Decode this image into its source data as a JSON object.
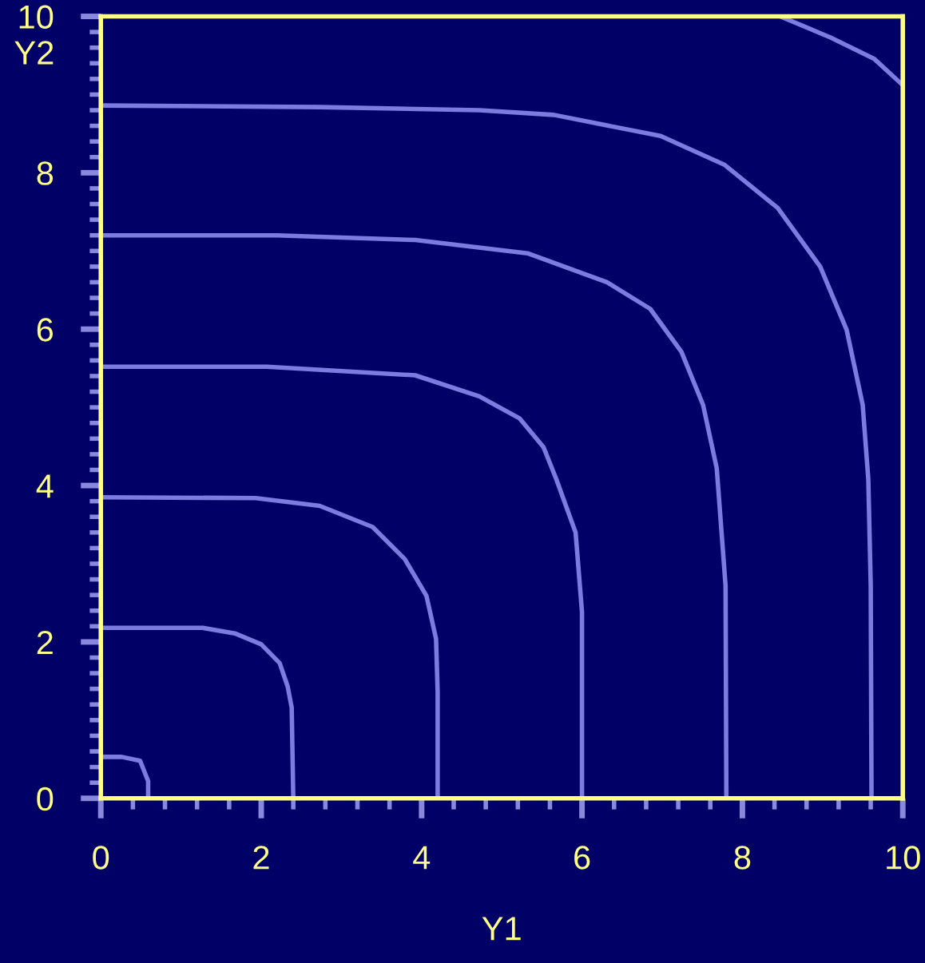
{
  "chart_data": {
    "type": "line",
    "xlabel": "Y1",
    "ylabel": "Y2",
    "xlim": [
      0,
      10
    ],
    "ylim": [
      0,
      10
    ],
    "xticks": [
      0,
      2,
      4,
      6,
      8,
      10
    ],
    "yticks": [
      0,
      2,
      4,
      6,
      8,
      10
    ],
    "grid": false,
    "marker": "none",
    "line_style": "solid",
    "series": [
      {
        "color": "#7b7be0",
        "x": [
          0,
          0.26,
          0.49,
          0.59,
          0.59
        ],
        "values": [
          0.53,
          0.53,
          0.48,
          0.22,
          0
        ]
      },
      {
        "color": "#7b7be0",
        "x": [
          0,
          1.27,
          1.67,
          2.0,
          2.23,
          2.33,
          2.38,
          2.4
        ],
        "values": [
          2.18,
          2.18,
          2.11,
          1.97,
          1.73,
          1.43,
          1.16,
          0
        ]
      },
      {
        "color": "#7b7be0",
        "x": [
          0,
          1.93,
          2.73,
          3.39,
          3.79,
          4.06,
          4.18,
          4.2,
          4.2
        ],
        "values": [
          3.85,
          3.84,
          3.74,
          3.47,
          3.06,
          2.59,
          2.04,
          1.36,
          0
        ]
      },
      {
        "color": "#7b7be0",
        "x": [
          0,
          2.07,
          3.92,
          4.72,
          5.22,
          5.52,
          5.68,
          5.92,
          6.0,
          6.0
        ],
        "values": [
          5.52,
          5.52,
          5.41,
          5.14,
          4.86,
          4.49,
          4.08,
          3.4,
          2.38,
          0
        ]
      },
      {
        "color": "#7b7be0",
        "x": [
          0,
          2.2,
          3.92,
          5.32,
          6.31,
          6.85,
          7.24,
          7.51,
          7.68,
          7.79,
          7.8
        ],
        "values": [
          7.2,
          7.2,
          7.14,
          6.97,
          6.6,
          6.26,
          5.71,
          5.03,
          4.22,
          2.72,
          0
        ]
      },
      {
        "color": "#7b7be0",
        "x": [
          0,
          2.73,
          4.72,
          5.65,
          6.98,
          7.78,
          8.44,
          8.97,
          9.3,
          9.5,
          9.57,
          9.6,
          9.61
        ],
        "values": [
          8.86,
          8.84,
          8.8,
          8.74,
          8.47,
          8.1,
          7.55,
          6.8,
          5.99,
          5.03,
          4.08,
          2.72,
          0
        ]
      },
      {
        "color": "#7b7be0",
        "x": [
          8.47,
          9.1,
          9.64,
          10
        ],
        "values": [
          10,
          9.73,
          9.46,
          9.12
        ]
      }
    ]
  }
}
